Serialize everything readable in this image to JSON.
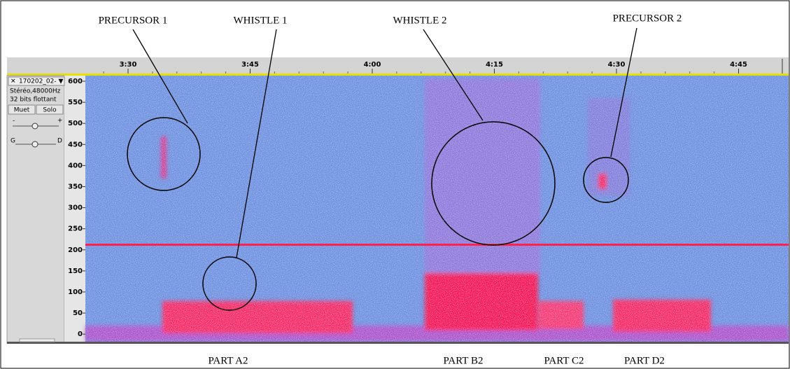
{
  "annotations": [
    "PRECURSOR 1",
    "WHISTLE 1",
    "WHISTLE 2",
    "PRECURSOR 2"
  ],
  "parts": [
    "PART A2",
    "PART B2",
    "PART C2",
    "PART D2"
  ],
  "ruler": {
    "ticks": [
      "3:30",
      "3:45",
      "4:00",
      "4:15",
      "4:30",
      "4:45"
    ]
  },
  "track": {
    "name": "170202_02-",
    "format": "Stéréo,48000Hz",
    "bits": "32 bits flottant",
    "buttons": [
      "Muet",
      "Solo"
    ],
    "gain": [
      "-",
      "+"
    ],
    "pan": [
      "G",
      "D"
    ]
  },
  "frequency_axis": {
    "ticks": [
      "600",
      "550",
      "500",
      "450",
      "400",
      "350",
      "300",
      "250",
      "200",
      "150",
      "100",
      "50",
      "0"
    ]
  }
}
